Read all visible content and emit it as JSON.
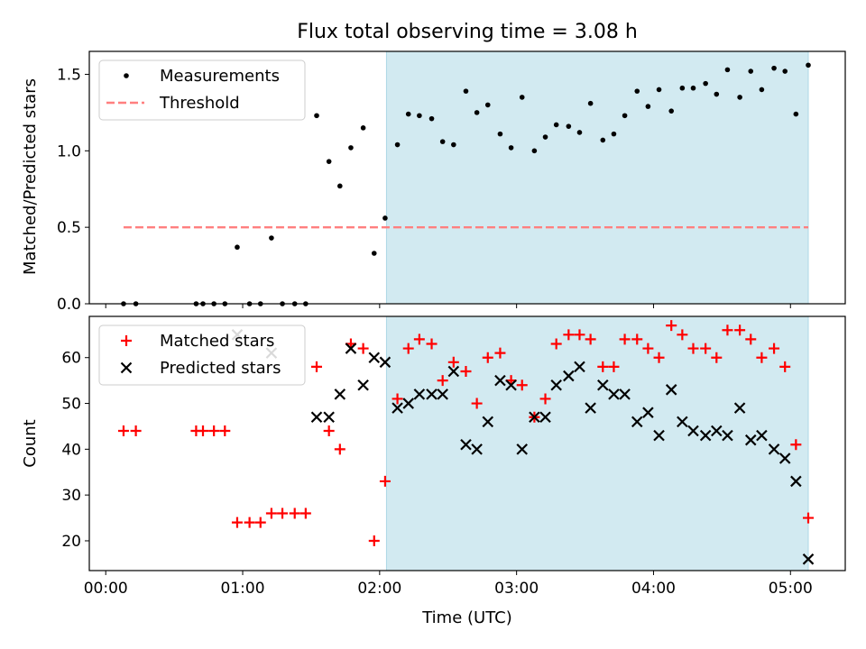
{
  "chart_data": {
    "title": "Flux total observing time = 3.08 h",
    "xlabel": "Time (UTC)",
    "xlim": [
      -0.12,
      5.4
    ],
    "x_ticks": [
      0,
      1,
      2,
      3,
      4,
      5
    ],
    "x_tick_labels": [
      "00:00",
      "01:00",
      "02:00",
      "03:00",
      "04:00",
      "05:00"
    ],
    "highlight_span": [
      2.05,
      5.13
    ],
    "highlight_color": "#add8e6",
    "panels": [
      {
        "type": "scatter",
        "ylabel": "Matched/Predicted stars",
        "ylim": [
          0,
          1.65
        ],
        "y_ticks": [
          0.0,
          0.5,
          1.0,
          1.5
        ],
        "y_tick_labels": [
          "0.0",
          "0.5",
          "1.0",
          "1.5"
        ],
        "legend_position": "upper-left",
        "series": [
          {
            "name": "Measurements",
            "marker": "dot",
            "color": "#000000",
            "x": [
              0.13,
              0.22,
              0.66,
              0.71,
              0.79,
              0.87,
              0.96,
              1.05,
              1.13,
              1.21,
              1.29,
              1.38,
              1.46,
              1.54,
              1.63,
              1.71,
              1.79,
              1.88,
              1.96,
              2.04,
              2.13,
              2.21,
              2.29,
              2.38,
              2.46,
              2.54,
              2.63,
              2.71,
              2.79,
              2.88,
              2.96,
              3.04,
              3.13,
              3.21,
              3.29,
              3.38,
              3.46,
              3.54,
              3.63,
              3.71,
              3.79,
              3.88,
              3.96,
              4.04,
              4.13,
              4.21,
              4.29,
              4.38,
              4.46,
              4.54,
              4.63,
              4.71,
              4.79,
              4.88,
              4.96,
              5.04,
              5.13
            ],
            "y": [
              0.0,
              0.0,
              0.0,
              0.0,
              0.0,
              0.0,
              0.37,
              0.0,
              0.0,
              0.43,
              0.0,
              0.0,
              0.0,
              1.23,
              0.93,
              0.77,
              1.02,
              1.15,
              0.33,
              0.56,
              1.04,
              1.24,
              1.23,
              1.21,
              1.06,
              1.04,
              1.39,
              1.25,
              1.3,
              1.11,
              1.02,
              1.35,
              1.0,
              1.09,
              1.17,
              1.16,
              1.12,
              1.31,
              1.07,
              1.11,
              1.23,
              1.39,
              1.29,
              1.4,
              1.26,
              1.41,
              1.41,
              1.44,
              1.37,
              1.53,
              1.35,
              1.52,
              1.4,
              1.54,
              1.52,
              1.24,
              1.56
            ]
          },
          {
            "name": "Threshold",
            "marker": "dashed-line",
            "color": "#ff7f7f",
            "x": [
              0.13,
              5.13
            ],
            "y": [
              0.5,
              0.5
            ]
          }
        ]
      },
      {
        "type": "scatter",
        "ylabel": "Count",
        "ylim": [
          13.5,
          69
        ],
        "y_ticks": [
          20,
          30,
          40,
          50,
          60
        ],
        "y_tick_labels": [
          "20",
          "30",
          "40",
          "50",
          "60"
        ],
        "legend_position": "upper-left",
        "series": [
          {
            "name": "Matched stars",
            "marker": "plus",
            "color": "#ff0000",
            "x": [
              0.13,
              0.22,
              0.66,
              0.71,
              0.79,
              0.87,
              0.96,
              1.05,
              1.13,
              1.21,
              1.29,
              1.38,
              1.46,
              1.54,
              1.63,
              1.71,
              1.79,
              1.88,
              1.96,
              2.04,
              2.13,
              2.21,
              2.29,
              2.38,
              2.46,
              2.54,
              2.63,
              2.71,
              2.79,
              2.88,
              2.96,
              3.04,
              3.13,
              3.21,
              3.29,
              3.38,
              3.46,
              3.54,
              3.63,
              3.71,
              3.79,
              3.88,
              3.96,
              4.04,
              4.13,
              4.21,
              4.29,
              4.38,
              4.46,
              4.54,
              4.63,
              4.71,
              4.79,
              4.88,
              4.96,
              5.04,
              5.13
            ],
            "y": [
              44,
              44,
              44,
              44,
              44,
              44,
              24,
              24,
              24,
              26,
              26,
              26,
              26,
              58,
              44,
              40,
              63,
              62,
              20,
              33,
              51,
              62,
              64,
              63,
              55,
              59,
              57,
              50,
              60,
              61,
              55,
              54,
              47,
              51,
              63,
              65,
              65,
              64,
              58,
              58,
              64,
              64,
              62,
              60,
              67,
              65,
              62,
              62,
              60,
              66,
              66,
              64,
              60,
              62,
              58,
              41,
              25
            ]
          },
          {
            "name": "Predicted stars",
            "marker": "x",
            "color": "#000000",
            "x": [
              0.96,
              1.21,
              1.54,
              1.63,
              1.71,
              1.79,
              1.88,
              1.96,
              2.04,
              2.13,
              2.21,
              2.29,
              2.38,
              2.46,
              2.54,
              2.63,
              2.71,
              2.79,
              2.88,
              2.96,
              3.04,
              3.13,
              3.21,
              3.29,
              3.38,
              3.46,
              3.54,
              3.63,
              3.71,
              3.79,
              3.88,
              3.96,
              4.04,
              4.13,
              4.21,
              4.29,
              4.38,
              4.46,
              4.54,
              4.63,
              4.71,
              4.79,
              4.88,
              4.96,
              5.04,
              5.13
            ],
            "y": [
              65,
              61,
              47,
              47,
              52,
              62,
              54,
              60,
              59,
              49,
              50,
              52,
              52,
              52,
              57,
              41,
              40,
              46,
              55,
              54,
              40,
              47,
              47,
              54,
              56,
              58,
              49,
              54,
              52,
              52,
              46,
              48,
              43,
              53,
              46,
              44,
              43,
              44,
              43,
              49,
              42,
              43,
              40,
              38,
              33,
              16
            ]
          }
        ]
      }
    ]
  }
}
